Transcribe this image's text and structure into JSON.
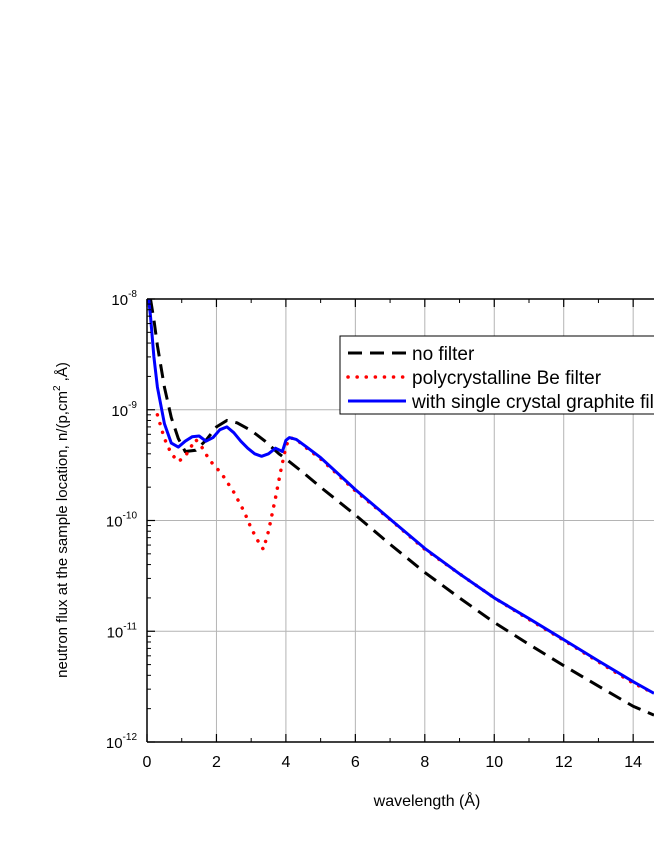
{
  "chart_data": {
    "type": "line",
    "xlabel": "wavelength (Å)",
    "ylabel": {
      "prefix": "neutron flux at the sample location, n/(p,cm",
      "sup": "2",
      "suffix": " ,Å)"
    },
    "xlim": [
      0,
      14.6
    ],
    "ylim": [
      1e-12,
      1e-08
    ],
    "yscale": "log",
    "grid": true,
    "legend_position": "top-right",
    "x_ticks": [
      0,
      2,
      4,
      6,
      8,
      10,
      12,
      14
    ],
    "x_tick_labels": [
      "0",
      "2",
      "4",
      "6",
      "8",
      "10",
      "12",
      "14"
    ],
    "y_ticks": [
      {
        "value": 1e-08,
        "base": "10",
        "exp": "-8"
      },
      {
        "value": 1e-09,
        "base": "10",
        "exp": "-9"
      },
      {
        "value": 1e-10,
        "base": "10",
        "exp": "-10"
      },
      {
        "value": 1e-11,
        "base": "10",
        "exp": "-11"
      },
      {
        "value": 1e-12,
        "base": "10",
        "exp": "-12"
      }
    ],
    "series": [
      {
        "name": "no filter",
        "color": "#000000",
        "style": "dashed",
        "x": [
          0.1,
          0.2,
          0.3,
          0.5,
          0.7,
          0.9,
          1.1,
          1.4,
          1.7,
          2.0,
          2.3,
          2.6,
          3.0,
          3.4,
          3.8,
          4.0,
          4.5,
          5.0,
          6.0,
          7.0,
          8.0,
          9.0,
          10.0,
          11.0,
          12.0,
          13.0,
          14.0,
          14.6
        ],
        "y": [
          1e-08,
          6.5e-09,
          3.8e-09,
          1.6e-09,
          8.5e-10,
          5.5e-10,
          4.2e-10,
          4.3e-10,
          5.3e-10,
          7e-10,
          8e-10,
          7.6e-10,
          6.5e-10,
          5.2e-10,
          4e-10,
          3.6e-10,
          2.7e-10,
          2e-10,
          1.12e-10,
          6.1e-11,
          3.4e-11,
          2e-11,
          1.2e-11,
          7.6e-12,
          4.9e-12,
          3.2e-12,
          2.1e-12,
          1.75e-12
        ]
      },
      {
        "name": "polycrystalline Be filter",
        "color": "#ff0000",
        "style": "dotted",
        "x": [
          0.3,
          0.5,
          0.7,
          0.9,
          1.1,
          1.4,
          1.6,
          1.8,
          2.0,
          2.2,
          2.5,
          2.8,
          3.0,
          3.2,
          3.35,
          3.5,
          3.7,
          3.85,
          4.0,
          4.1,
          4.3,
          4.6,
          5.0,
          6.0,
          7.0,
          8.0,
          9.0,
          10.0,
          11.0,
          12.0,
          13.0,
          14.0,
          14.6
        ],
        "y": [
          9e-10,
          5.5e-10,
          4e-10,
          3.4e-10,
          3.8e-10,
          5.4e-10,
          4.5e-10,
          3.5e-10,
          3e-10,
          2.5e-10,
          1.8e-10,
          1.2e-10,
          8.5e-11,
          6.5e-11,
          5.5e-11,
          8e-11,
          1.6e-10,
          2.8e-10,
          4.6e-10,
          5.6e-10,
          5.4e-10,
          4.5e-10,
          3.6e-10,
          1.85e-10,
          1.02e-10,
          5.5e-11,
          3.3e-11,
          2e-11,
          1.28e-11,
          8.3e-12,
          5.3e-12,
          3.4e-12,
          2.75e-12
        ]
      },
      {
        "name": "with single crystal graphite filter",
        "color": "#0000ff",
        "style": "solid",
        "x": [
          0.05,
          0.1,
          0.2,
          0.3,
          0.5,
          0.7,
          0.9,
          1.1,
          1.3,
          1.5,
          1.7,
          1.9,
          2.1,
          2.3,
          2.5,
          2.7,
          2.9,
          3.1,
          3.3,
          3.5,
          3.7,
          3.9,
          4.0,
          4.1,
          4.3,
          4.6,
          5.0,
          6.0,
          7.0,
          8.0,
          9.0,
          10.0,
          11.0,
          12.0,
          13.0,
          14.0,
          14.6
        ],
        "y": [
          1e-08,
          7e-09,
          3e-09,
          1.6e-09,
          7.5e-10,
          5e-10,
          4.6e-10,
          5.2e-10,
          5.7e-10,
          5.8e-10,
          5.2e-10,
          5.6e-10,
          6.6e-10,
          7e-10,
          6.2e-10,
          5.2e-10,
          4.5e-10,
          4e-10,
          3.8e-10,
          4e-10,
          4.5e-10,
          4.2e-10,
          5.3e-10,
          5.6e-10,
          5.4e-10,
          4.6e-10,
          3.7e-10,
          1.9e-10,
          1.03e-10,
          5.6e-11,
          3.3e-11,
          2e-11,
          1.3e-11,
          8.4e-12,
          5.4e-12,
          3.5e-12,
          2.75e-12
        ]
      }
    ]
  }
}
